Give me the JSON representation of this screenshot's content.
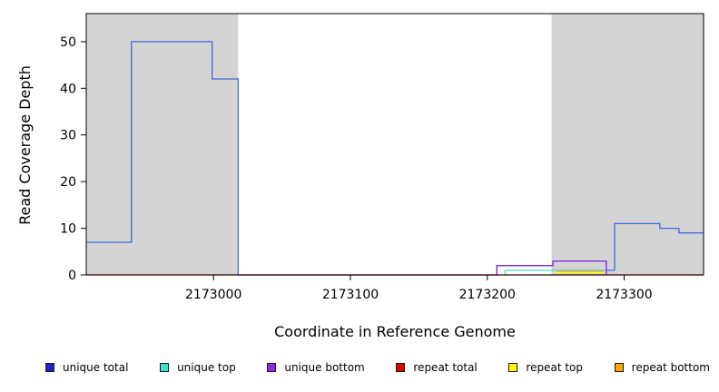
{
  "figure": {
    "background": "#ffffff"
  },
  "chart_data": {
    "type": "line",
    "title": "",
    "xlabel": "Coordinate in Reference Genome",
    "ylabel": "Read Coverage Depth",
    "xlim": [
      2172907,
      2173358
    ],
    "ylim": [
      0,
      56
    ],
    "xticks": [
      2173000,
      2173100,
      2173200,
      2173300
    ],
    "yticks": [
      0,
      10,
      20,
      30,
      40,
      50
    ],
    "grid": false,
    "legend_position": "bottom",
    "shaded_regions": [
      {
        "name": "left-shaded-region",
        "x0": 2172907,
        "x1": 2173018,
        "color": "#d4d4d4"
      },
      {
        "name": "right-shaded-region",
        "x0": 2173247,
        "x1": 2173358,
        "color": "#d4d4d4"
      }
    ],
    "series": [
      {
        "name": "unique top",
        "color": "#40e0d0",
        "points": [
          [
            2173213,
            0
          ],
          [
            2173213,
            1
          ],
          [
            2173287,
            1
          ],
          [
            2173287,
            0
          ]
        ]
      },
      {
        "name": "repeat top",
        "color": "#ffff00",
        "points": [
          [
            2173250,
            0.45
          ],
          [
            2173285,
            0.45
          ]
        ]
      },
      {
        "name": "repeat bottom",
        "color": "#ffa500",
        "points": [
          [
            2173250,
            0.8
          ],
          [
            2173285,
            0.8
          ]
        ]
      },
      {
        "name": "unique total",
        "color": "#4169e1",
        "points": [
          [
            2172907,
            7
          ],
          [
            2172940,
            7
          ],
          [
            2172940,
            50
          ],
          [
            2172999,
            50
          ],
          [
            2172999,
            42
          ],
          [
            2173018,
            42
          ],
          [
            2173018,
            0
          ],
          [
            2173207,
            0
          ],
          [
            2173207,
            2
          ],
          [
            2173248,
            2
          ],
          [
            2173248,
            3
          ],
          [
            2173287,
            3
          ],
          [
            2173287,
            1
          ],
          [
            2173293,
            1
          ],
          [
            2173293,
            11
          ],
          [
            2173326,
            11
          ],
          [
            2173326,
            10
          ],
          [
            2173340,
            10
          ],
          [
            2173340,
            9
          ],
          [
            2173358,
            9
          ]
        ]
      },
      {
        "name": "unique bottom",
        "color": "#8b2be2",
        "points": [
          [
            2173207,
            0
          ],
          [
            2173207,
            2
          ],
          [
            2173248,
            2
          ],
          [
            2173248,
            3
          ],
          [
            2173287,
            3
          ],
          [
            2173287,
            0
          ]
        ]
      },
      {
        "name": "repeat total",
        "color": "#dd0000",
        "points": [
          [
            2172907,
            0
          ],
          [
            2173358,
            0
          ]
        ]
      }
    ],
    "legend": [
      {
        "label": "unique total",
        "color": "#2222cc"
      },
      {
        "label": "unique top",
        "color": "#40e0d0"
      },
      {
        "label": "unique bottom",
        "color": "#8b2be2"
      },
      {
        "label": "repeat total",
        "color": "#dd0000"
      },
      {
        "label": "repeat top",
        "color": "#ffff00"
      },
      {
        "label": "repeat bottom",
        "color": "#ffa500"
      }
    ]
  }
}
